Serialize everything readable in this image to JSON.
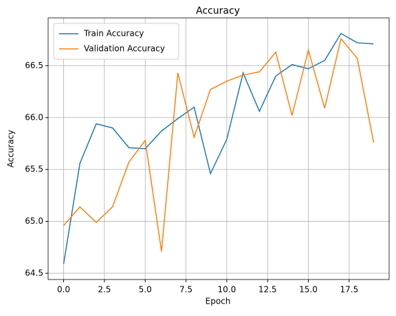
{
  "chart_data": {
    "type": "line",
    "title": "Accuracy",
    "x_label": "Epoch",
    "y_label": "Accuracy",
    "x": [
      0,
      1,
      2,
      3,
      4,
      5,
      6,
      7,
      8,
      9,
      10,
      11,
      12,
      13,
      14,
      15,
      16,
      17,
      18,
      19
    ],
    "series": [
      {
        "name": "Train Accuracy",
        "color": "#1f77b4",
        "values": [
          64.59,
          65.56,
          65.94,
          65.9,
          65.71,
          65.7,
          65.87,
          65.99,
          66.1,
          65.46,
          65.79,
          66.43,
          66.06,
          66.4,
          66.51,
          66.47,
          66.55,
          66.81,
          66.72,
          66.71
        ]
      },
      {
        "name": "Validation Accuracy",
        "color": "#ff7f0e",
        "values": [
          64.96,
          65.14,
          64.99,
          65.14,
          65.57,
          65.78,
          64.71,
          66.43,
          65.81,
          66.27,
          66.35,
          66.41,
          66.44,
          66.63,
          66.02,
          66.65,
          66.09,
          66.76,
          66.57,
          65.76
        ]
      }
    ],
    "xlim": [
      -0.95,
      19.95
    ],
    "xticks": [
      {
        "value": 0,
        "label": "0.0"
      },
      2.5,
      {
        "value": 5,
        "label": "5.0"
      },
      7.5,
      {
        "value": 10,
        "label": "10.0"
      },
      12.5,
      {
        "value": 15,
        "label": "15.0"
      },
      17.5
    ],
    "ylim": [
      64.44,
      66.96
    ],
    "yticks": [
      64.5,
      {
        "value": 65,
        "label": "65.0"
      },
      65.5,
      {
        "value": 66,
        "label": "66.0"
      },
      66.5
    ],
    "grid": true,
    "legend": "upper-left"
  }
}
